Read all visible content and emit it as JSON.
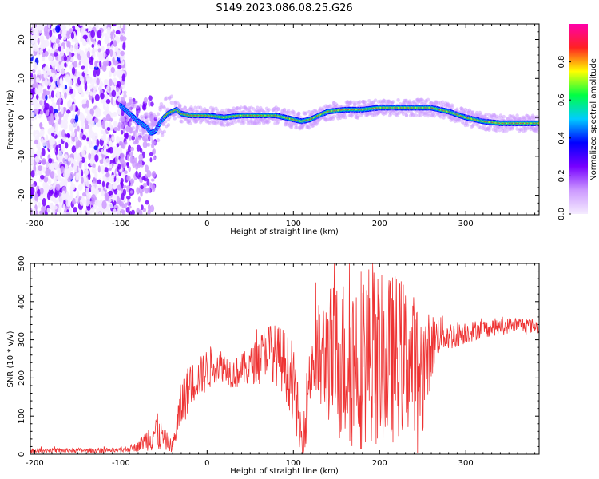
{
  "title": "S149.2023.086.08.25.G26",
  "colors": {
    "snr_line": "#ee3333",
    "axis": "#000000",
    "spectrogram_cmap": [
      "#f5ecff",
      "#cc99ff",
      "#7700ff",
      "#0000ff",
      "#00ccff",
      "#00ff44",
      "#ffff00",
      "#ff2222",
      "#ff00aa"
    ]
  },
  "chart_data": [
    {
      "type": "heatmap",
      "name": "spectrogram",
      "xlabel": "Height of straight line (km)",
      "ylabel": "Frequency (Hz)",
      "xlim": [
        -205,
        385
      ],
      "ylim": [
        -25,
        24
      ],
      "xticks": [
        -200,
        -100,
        0,
        100,
        200,
        300
      ],
      "yticks": [
        -20,
        -10,
        0,
        10,
        20
      ],
      "colorbar": {
        "label": "Normalized spectral amplitude",
        "range": [
          0.0,
          1.0
        ],
        "ticks": [
          0.0,
          0.2,
          0.4,
          0.6,
          0.8
        ]
      },
      "ridge": {
        "x": [
          -100,
          -90,
          -80,
          -70,
          -65,
          -60,
          -55,
          -50,
          -45,
          -40,
          -35,
          -30,
          -20,
          0,
          20,
          40,
          60,
          80,
          90,
          100,
          110,
          120,
          140,
          160,
          180,
          200,
          220,
          240,
          260,
          280,
          300,
          320,
          340,
          360,
          385
        ],
        "y": [
          3,
          1,
          -1,
          -2.5,
          -4,
          -3.5,
          -1.5,
          0,
          1,
          1.5,
          2,
          1,
          0.5,
          0.5,
          0,
          0.5,
          0.5,
          0.5,
          0,
          -0.5,
          -1,
          -0.5,
          1.5,
          2,
          2,
          2.5,
          2.5,
          2.5,
          2.5,
          1.5,
          0,
          -1,
          -1.5,
          -1.5,
          -1.5
        ]
      },
      "noise_region_x": [
        -205,
        -95
      ]
    },
    {
      "type": "line",
      "name": "snr",
      "xlabel": "Height of straight line (km)",
      "ylabel": "SNR (10 * v/v)",
      "xlim": [
        -205,
        385
      ],
      "ylim": [
        0,
        500
      ],
      "xticks": [
        -200,
        -100,
        0,
        100,
        200,
        300
      ],
      "yticks": [
        0,
        100,
        200,
        300,
        400,
        500
      ],
      "envelope": {
        "x": [
          -205,
          -100,
          -80,
          -70,
          -60,
          -50,
          -40,
          -30,
          -20,
          -10,
          0,
          10,
          20,
          30,
          40,
          50,
          60,
          70,
          80,
          90,
          100,
          105,
          110,
          115,
          120,
          130,
          140,
          150,
          160,
          170,
          180,
          190,
          200,
          210,
          220,
          230,
          240,
          250,
          260,
          270,
          280,
          300,
          320,
          340,
          360,
          385
        ],
        "base": [
          10,
          10,
          20,
          40,
          60,
          40,
          20,
          130,
          180,
          200,
          220,
          240,
          230,
          210,
          220,
          230,
          250,
          280,
          260,
          240,
          180,
          100,
          30,
          120,
          240,
          250,
          260,
          250,
          240,
          250,
          260,
          270,
          250,
          240,
          260,
          250,
          240,
          220,
          280,
          320,
          310,
          320,
          330,
          335,
          340,
          335
        ],
        "amp": [
          6,
          6,
          12,
          30,
          60,
          30,
          15,
          70,
          60,
          50,
          60,
          50,
          40,
          40,
          45,
          50,
          60,
          70,
          80,
          90,
          100,
          90,
          60,
          90,
          110,
          150,
          180,
          210,
          230,
          240,
          250,
          240,
          220,
          230,
          220,
          200,
          180,
          160,
          90,
          50,
          40,
          30,
          25,
          22,
          20,
          20
        ]
      }
    }
  ]
}
